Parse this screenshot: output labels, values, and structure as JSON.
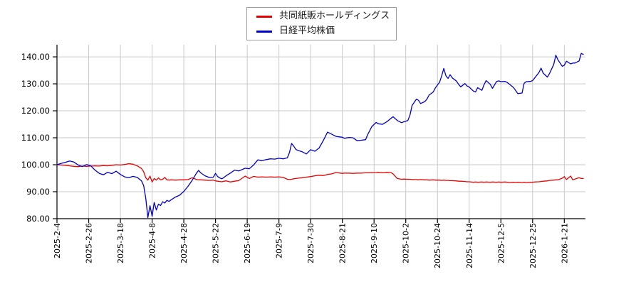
{
  "legend": {
    "items": [
      {
        "label": "共同紙販ホールディングス",
        "color": "#e60000"
      },
      {
        "label": "日経平均株価",
        "color": "#0000cc"
      }
    ]
  },
  "chart_data": {
    "type": "line",
    "title": "",
    "xlabel": "",
    "ylabel": "",
    "grid": true,
    "legend_position": "top-center",
    "y_axis": {
      "tick_labels": [
        "80.00",
        "90.00",
        "100.00",
        "110.00",
        "120.00",
        "130.00",
        "140.00"
      ],
      "tick_values": [
        80,
        90,
        100,
        110,
        120,
        130,
        140
      ],
      "ylim": [
        80,
        144.5
      ]
    },
    "x_axis": {
      "tick_labels": [
        "2025-2-4",
        "2025-2-26",
        "2025-3-18",
        "2025-4-8",
        "2025-4-28",
        "2025-5-22",
        "2025-6-19",
        "2025-7-9",
        "2025-7-30",
        "2025-8-21",
        "2025-9-10",
        "2025-10-2",
        "2025-10-24",
        "2025-11-14",
        "2025-12-5",
        "2025-12-25",
        "2026-1-21"
      ],
      "tick_days": [
        0,
        15,
        30,
        45,
        60,
        75,
        90,
        105,
        120,
        135,
        150,
        165,
        180,
        195,
        210,
        225,
        240
      ],
      "range_days": [
        0,
        250
      ]
    },
    "sample_days": [
      0,
      2,
      4,
      6,
      8,
      10,
      12,
      14,
      16,
      18,
      20,
      22,
      24,
      26,
      28,
      30,
      32,
      34,
      36,
      38,
      40,
      41,
      42,
      43,
      44,
      45,
      46,
      47,
      48,
      49,
      50,
      51,
      52,
      53,
      54,
      56,
      58,
      60,
      62,
      64,
      66,
      67,
      68,
      70,
      72,
      74,
      75,
      76,
      77,
      78,
      79,
      80,
      82,
      84,
      86,
      89,
      91,
      93,
      95,
      97,
      99,
      101,
      103,
      105,
      107,
      109,
      110,
      111,
      112,
      113,
      114,
      116,
      118,
      120,
      122,
      124,
      126,
      128,
      130,
      132,
      135,
      136,
      138,
      140,
      142,
      144,
      146,
      147,
      149,
      151,
      152,
      154,
      156,
      158,
      159,
      161,
      163,
      164,
      166,
      167,
      168,
      170,
      171,
      172,
      174,
      175,
      176,
      178,
      179,
      181,
      182,
      183,
      184,
      185,
      186,
      187,
      189,
      190,
      191,
      193,
      194,
      195,
      197,
      198,
      199,
      201,
      202,
      203,
      205,
      206,
      208,
      209,
      210,
      212,
      213,
      214,
      216,
      217,
      218,
      220,
      221,
      222,
      224,
      225,
      226,
      228,
      229,
      230,
      232,
      233,
      235,
      236,
      237,
      239,
      240,
      241,
      243,
      244,
      245,
      247,
      248,
      249
    ],
    "series": [
      {
        "name": "共同紙販ホールディングス",
        "color": "#e60000",
        "values": [
          100.0,
          99.9,
          99.8,
          99.6,
          99.4,
          99.3,
          99.5,
          99.4,
          99.5,
          99.6,
          99.5,
          99.7,
          99.6,
          99.8,
          100.0,
          99.9,
          100.1,
          100.4,
          100.2,
          99.6,
          98.6,
          97.4,
          95.2,
          94.3,
          95.8,
          93.6,
          94.9,
          94.3,
          95.1,
          94.4,
          94.6,
          95.3,
          94.4,
          94.3,
          94.4,
          94.3,
          94.4,
          94.4,
          94.5,
          95.2,
          94.5,
          94.4,
          94.4,
          94.3,
          94.2,
          94.3,
          94.0,
          93.9,
          93.8,
          93.7,
          93.9,
          94.0,
          93.6,
          93.9,
          94.1,
          95.8,
          94.9,
          95.7,
          95.4,
          95.5,
          95.4,
          95.5,
          95.4,
          95.5,
          95.3,
          94.6,
          94.5,
          94.6,
          94.8,
          94.9,
          95.0,
          95.2,
          95.4,
          95.6,
          95.9,
          96.1,
          96.0,
          96.4,
          96.6,
          97.1,
          96.8,
          96.9,
          96.9,
          96.8,
          96.9,
          96.9,
          97.0,
          97.0,
          97.0,
          97.1,
          97.2,
          97.0,
          97.2,
          97.1,
          96.6,
          94.9,
          94.6,
          94.7,
          94.6,
          94.6,
          94.5,
          94.5,
          94.4,
          94.5,
          94.4,
          94.4,
          94.3,
          94.4,
          94.3,
          94.3,
          94.2,
          94.3,
          94.2,
          94.2,
          94.1,
          94.1,
          94.0,
          93.9,
          93.9,
          93.8,
          93.7,
          93.7,
          93.5,
          93.6,
          93.5,
          93.6,
          93.5,
          93.6,
          93.5,
          93.6,
          93.5,
          93.6,
          93.5,
          93.6,
          93.5,
          93.4,
          93.5,
          93.4,
          93.5,
          93.4,
          93.5,
          93.4,
          93.5,
          93.5,
          93.6,
          93.7,
          93.8,
          93.9,
          94.0,
          94.2,
          94.3,
          94.4,
          94.4,
          95.0,
          95.6,
          94.5,
          95.8,
          94.4,
          94.7,
          95.2,
          94.9,
          94.9
        ]
      },
      {
        "name": "日経平均株価",
        "color": "#0000cc",
        "values": [
          100.0,
          100.5,
          100.9,
          101.4,
          101.0,
          99.9,
          99.3,
          100.1,
          99.6,
          98.0,
          96.8,
          96.3,
          97.2,
          96.7,
          97.6,
          96.4,
          95.5,
          95.2,
          95.7,
          95.3,
          94.0,
          92.3,
          87.5,
          80.4,
          84.8,
          80.9,
          86.0,
          83.2,
          85.4,
          84.9,
          86.3,
          85.8,
          86.8,
          86.4,
          87.0,
          88.0,
          88.7,
          90.1,
          92.0,
          94.3,
          96.9,
          97.9,
          97.0,
          95.9,
          95.3,
          95.4,
          96.8,
          95.6,
          95.1,
          94.8,
          95.3,
          95.9,
          96.9,
          98.0,
          97.7,
          98.7,
          98.5,
          99.9,
          101.8,
          101.5,
          101.9,
          102.2,
          102.1,
          102.4,
          102.2,
          102.6,
          104.6,
          107.9,
          106.9,
          105.7,
          105.3,
          104.8,
          104.0,
          105.6,
          105.0,
          106.2,
          109.0,
          112.1,
          111.3,
          110.5,
          110.2,
          109.8,
          110.1,
          110.0,
          108.9,
          109.1,
          109.3,
          111.2,
          114.2,
          115.7,
          115.2,
          115.0,
          115.9,
          117.2,
          117.8,
          116.4,
          115.6,
          115.9,
          116.4,
          118.5,
          122.0,
          124.3,
          123.9,
          122.7,
          123.4,
          124.3,
          125.8,
          127.0,
          128.5,
          130.6,
          133.0,
          135.7,
          133.0,
          132.0,
          133.4,
          132.2,
          131.0,
          129.8,
          128.9,
          130.1,
          129.2,
          128.8,
          127.3,
          127.0,
          128.6,
          127.6,
          129.6,
          131.2,
          129.8,
          128.3,
          130.9,
          131.1,
          130.8,
          130.9,
          130.5,
          129.9,
          128.6,
          127.5,
          126.4,
          126.6,
          130.2,
          130.8,
          130.9,
          131.2,
          132.2,
          134.2,
          135.8,
          134.0,
          132.5,
          133.8,
          137.2,
          140.6,
          138.9,
          136.5,
          136.9,
          138.4,
          137.4,
          137.7,
          137.7,
          138.5,
          141.3,
          140.9
        ]
      }
    ]
  }
}
